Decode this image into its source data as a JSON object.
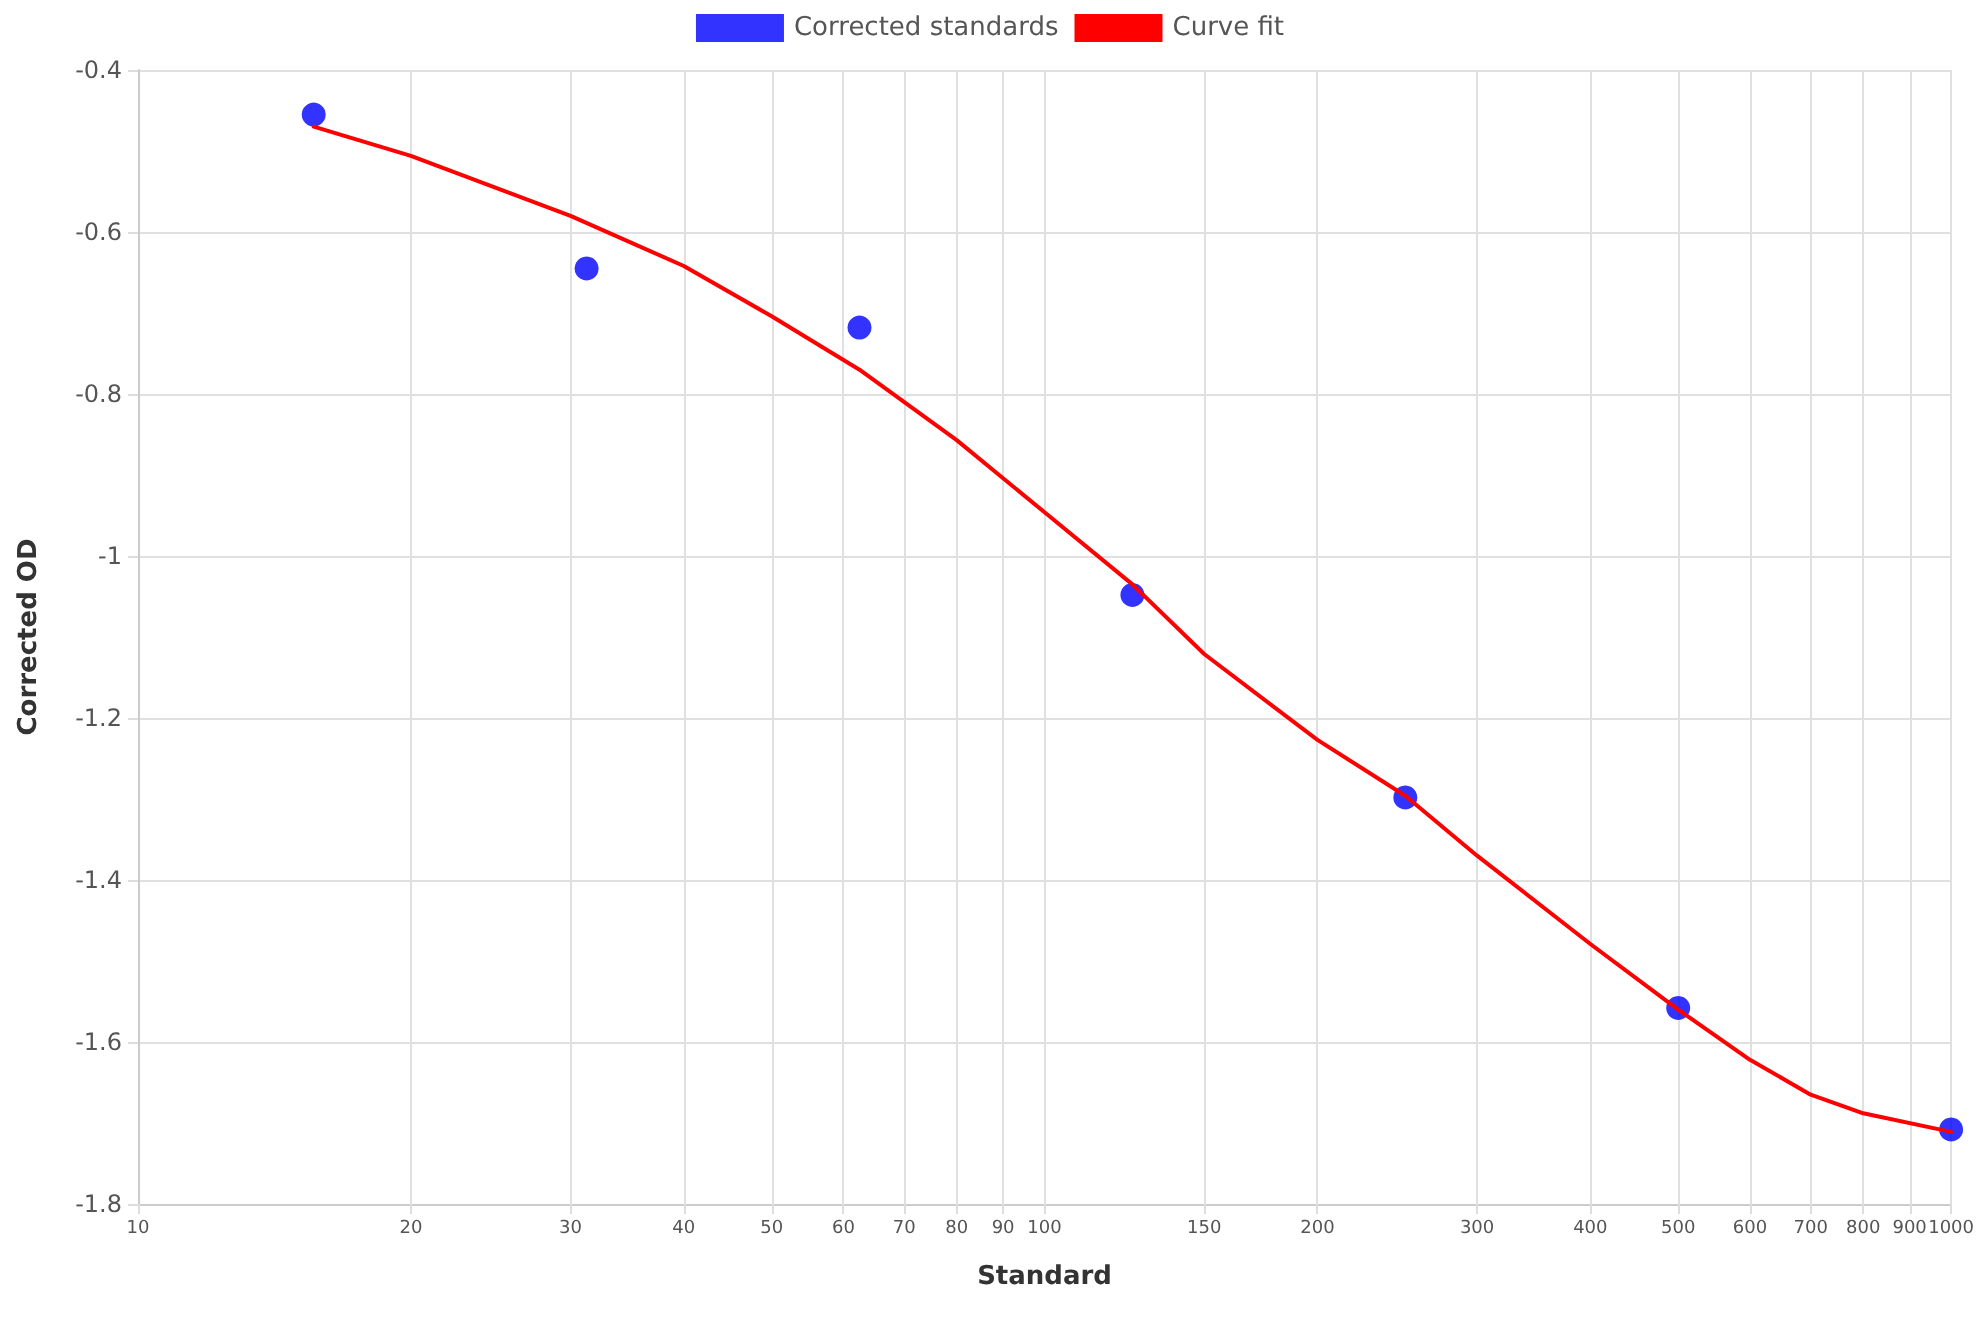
{
  "chart_data": {
    "type": "scatter",
    "xlabel": "Standard",
    "ylabel": "Corrected OD",
    "log": "x",
    "grid": true,
    "legend": "top",
    "marker": "circle",
    "xlim": [
      10,
      1000
    ],
    "xticks": [
      10,
      20,
      30,
      40,
      50,
      60,
      70,
      80,
      90,
      100,
      150,
      200,
      300,
      400,
      500,
      600,
      700,
      800,
      900,
      1000
    ],
    "ylim": [
      -1.8,
      -0.4
    ],
    "yticks": [
      -1.8,
      -1.6,
      -1.4,
      -1.2,
      -1,
      -0.8,
      -0.6,
      -0.4
    ],
    "series": [
      {
        "name": "Corrected standards",
        "color": "#0000ff",
        "x": [
          15.625,
          31.25,
          62.5,
          125,
          250,
          500,
          1000
        ],
        "values": [
          -0.455,
          -0.645,
          -0.718,
          -1.048,
          -1.298,
          -1.558,
          -1.708
        ]
      },
      {
        "name": "Curve fit",
        "type": "line",
        "color": "#ff0000",
        "marker": "none",
        "line_style": "solid",
        "x": [
          15.625,
          20,
          30,
          40,
          50,
          62.5,
          80,
          100,
          125,
          150,
          200,
          250,
          300,
          400,
          500,
          600,
          700,
          800,
          1000
        ],
        "values": [
          -0.47,
          -0.506,
          -0.58,
          -0.642,
          -0.704,
          -0.77,
          -0.857,
          -0.946,
          -1.035,
          -1.121,
          -1.227,
          -1.296,
          -1.37,
          -1.479,
          -1.56,
          -1.622,
          -1.665,
          -1.688,
          -1.711
        ]
      }
    ]
  }
}
